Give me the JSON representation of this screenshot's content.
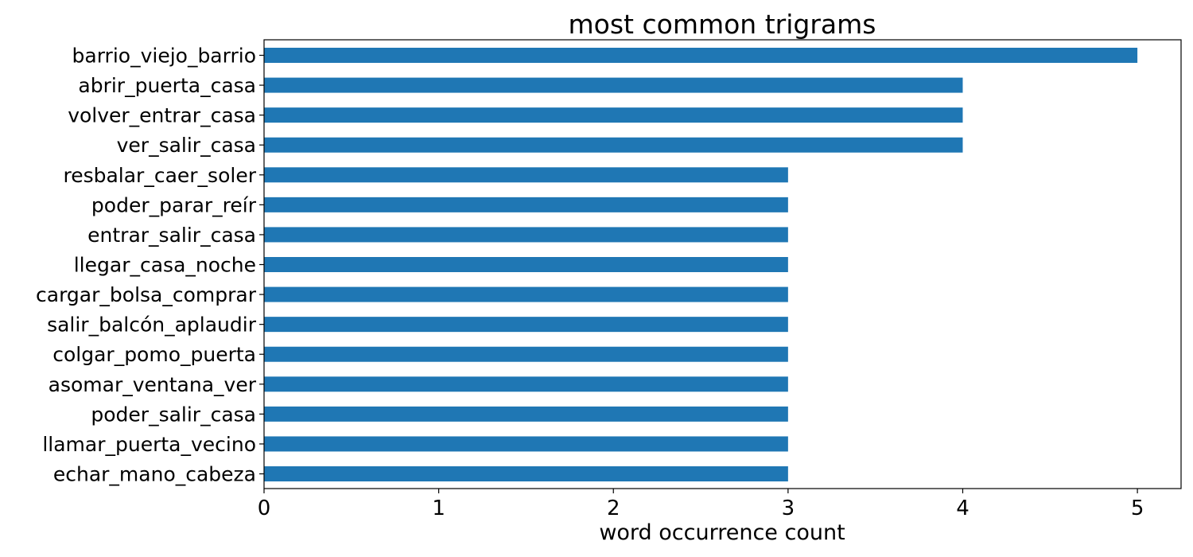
{
  "chart_data": {
    "type": "bar",
    "orientation": "horizontal",
    "title": "most common trigrams",
    "xlabel": "word occurrence count",
    "ylabel": "",
    "xlim": [
      0,
      5.25
    ],
    "xticks": [
      0,
      1,
      2,
      3,
      4,
      5
    ],
    "grid": false,
    "legend": "none",
    "bar_color": "#1f77b4",
    "categories": [
      "barrio_viejo_barrio",
      "abrir_puerta_casa",
      "volver_entrar_casa",
      "ver_salir_casa",
      "resbalar_caer_soler",
      "poder_parar_reír",
      "entrar_salir_casa",
      "llegar_casa_noche",
      "cargar_bolsa_comprar",
      "salir_balcón_aplaudir",
      "colgar_pomo_puerta",
      "asomar_ventana_ver",
      "poder_salir_casa",
      "llamar_puerta_vecino",
      "echar_mano_cabeza"
    ],
    "values": [
      5,
      4,
      4,
      4,
      3,
      3,
      3,
      3,
      3,
      3,
      3,
      3,
      3,
      3,
      3
    ]
  }
}
